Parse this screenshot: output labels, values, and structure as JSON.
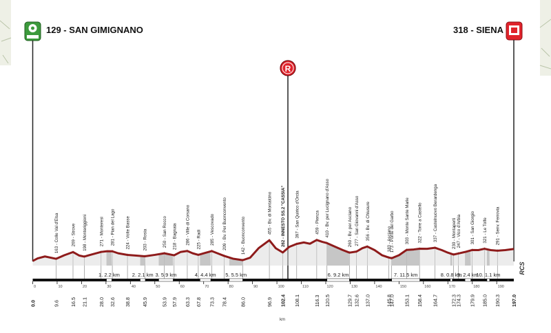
{
  "chart_data": {
    "type": "area",
    "start": {
      "label": "129 - SAN GIMIGNANO",
      "km": 0.0,
      "alt": 129
    },
    "finish": {
      "label": "318 - SIENA",
      "km": 197.0,
      "alt": 318
    },
    "feed_zone": {
      "letter": "R",
      "km": 102.4
    },
    "brand": "RCS",
    "axis_unit": "km",
    "xlim": [
      0,
      197.0
    ],
    "ylim_m": [
      100,
      500
    ],
    "km_ticks": [
      0,
      10,
      20,
      30,
      40,
      50,
      60,
      70,
      80,
      90,
      100,
      110,
      120,
      130,
      140,
      150,
      160,
      170,
      180,
      190
    ],
    "waypoints": [
      {
        "km": 9.6,
        "alt": 163,
        "label": "163 - Colle Val d'Elsa"
      },
      {
        "km": 16.5,
        "alt": 269,
        "label": "269 - Strove"
      },
      {
        "km": 21.1,
        "alt": 198,
        "label": "198 - Monteriggioni"
      },
      {
        "km": 28.0,
        "alt": 271,
        "label": "271 - Monteresi"
      },
      {
        "km": 32.6,
        "alt": 281,
        "label": "281 - Pian del Lago"
      },
      {
        "km": 38.8,
        "alt": 224,
        "label": "224 - Volte Basse"
      },
      {
        "km": 45.9,
        "alt": 203,
        "label": "203 - Rosia"
      },
      {
        "km": 53.9,
        "alt": 250,
        "label": "250 - San Rocco"
      },
      {
        "km": 57.9,
        "alt": 218,
        "label": "218 - Bagnaia"
      },
      {
        "km": 63.3,
        "alt": 286,
        "label": "286 - Ville di Corsano"
      },
      {
        "km": 67.8,
        "alt": 225,
        "label": "225 - Radi"
      },
      {
        "km": 73.3,
        "alt": 285,
        "label": "285 - Vescovado"
      },
      {
        "km": 78.4,
        "alt": 209,
        "label": "209 - Bv. Per Buonconvento"
      },
      {
        "km": 86.0,
        "alt": 142,
        "label": "142 - Buonconvento"
      },
      {
        "km": 96.9,
        "alt": 455,
        "label": "455 - Bv. di Montalcino"
      },
      {
        "km": 102.4,
        "alt": 262,
        "label": "262 - INNESTO SS.2 \"CASSIA\"",
        "bold": true
      },
      {
        "km": 108.1,
        "alt": 397,
        "label": "397 - San Quirico d'Orcia"
      },
      {
        "km": 116.3,
        "alt": 459,
        "label": "459 - Pienza"
      },
      {
        "km": 120.5,
        "alt": 410,
        "label": "410 - Bv. per Lucignano d'Asso"
      },
      {
        "km": 129.7,
        "alt": 260,
        "label": "260 - Bv. per Asciano"
      },
      {
        "km": 132.6,
        "alt": 277,
        "label": "277 - San Giovanni d'Asso"
      },
      {
        "km": 137.0,
        "alt": 356,
        "label": "356 - Bv. di Chiusure"
      },
      {
        "km": 145.8,
        "alt": 183,
        "label": "183 - Asciano"
      },
      {
        "km": 147.0,
        "alt": 173,
        "label": "173 - Ponte del Garbo"
      },
      {
        "km": 153.1,
        "alt": 303,
        "label": "303 - Monte Sante Marie"
      },
      {
        "km": 158.4,
        "alt": 322,
        "label": "322 - Torre a Castello"
      },
      {
        "km": 164.7,
        "alt": 337,
        "label": "337 - Castelnuovo Berardenga"
      },
      {
        "km": 172.3,
        "alt": 230,
        "label": "230 - Montaperti"
      },
      {
        "km": 174.3,
        "alt": 247,
        "label": "247 - Vico d'Arbia"
      },
      {
        "km": 179.9,
        "alt": 301,
        "label": "301 - San Giorgio"
      },
      {
        "km": 185.0,
        "alt": 321,
        "label": "321 - Le Tolfe"
      },
      {
        "km": 190.3,
        "alt": 291,
        "label": "291 - Senv. Ferrovia"
      }
    ],
    "distance_labels": [
      "0.0",
      "9.6",
      "16.5",
      "21.1",
      "28.0",
      "32.6",
      "38.8",
      "45.9",
      "53.9",
      "57.9",
      "63.3",
      "67.8",
      "73.3",
      "78.4",
      "86.0",
      "96.9",
      "102.4",
      "108.1",
      "116.3",
      "120.5",
      "129.7",
      "132.6",
      "137.0",
      "145.8",
      "147.0",
      "153.1",
      "158.4",
      "164.7",
      "172.3",
      "174.3",
      "179.9",
      "185.0",
      "190.3",
      "197.0"
    ],
    "sectors": [
      {
        "label": "1. 2.2 km",
        "from": 30.2,
        "to": 32.4
      },
      {
        "label": "2. 2.1 km",
        "from": 44.0,
        "to": 46.1
      },
      {
        "label": "3. 5.9 km",
        "from": 51.6,
        "to": 57.5
      },
      {
        "label": "4. 4.4 km",
        "from": 68.5,
        "to": 72.9
      },
      {
        "label": "5. 5.5 km",
        "from": 80.5,
        "to": 86.0
      },
      {
        "label": "6. 9.2 km",
        "from": 120.5,
        "to": 129.7
      },
      {
        "label": "7. 11.5 km",
        "from": 147.0,
        "to": 158.5
      },
      {
        "label": "8. 0.8 km",
        "from": 171.0,
        "to": 171.8
      },
      {
        "label": "9. 2.4 km",
        "from": 177.0,
        "to": 179.4
      },
      {
        "label": "10. 1.1 km",
        "from": 186.0,
        "to": 187.1
      }
    ],
    "profile": [
      [
        0,
        129
      ],
      [
        2,
        170
      ],
      [
        5,
        200
      ],
      [
        9.6,
        163
      ],
      [
        13,
        220
      ],
      [
        16.5,
        269
      ],
      [
        19,
        215
      ],
      [
        21.1,
        198
      ],
      [
        25,
        240
      ],
      [
        28,
        271
      ],
      [
        30.5,
        282
      ],
      [
        32.6,
        281
      ],
      [
        35,
        250
      ],
      [
        38.8,
        224
      ],
      [
        42,
        215
      ],
      [
        45.9,
        203
      ],
      [
        50,
        225
      ],
      [
        53.9,
        250
      ],
      [
        57.9,
        218
      ],
      [
        60.5,
        270
      ],
      [
        63.3,
        286
      ],
      [
        65.5,
        250
      ],
      [
        67.8,
        225
      ],
      [
        70.5,
        255
      ],
      [
        73.3,
        285
      ],
      [
        76,
        245
      ],
      [
        78.4,
        209
      ],
      [
        82,
        165
      ],
      [
        86,
        142
      ],
      [
        89,
        180
      ],
      [
        92.5,
        330
      ],
      [
        96.9,
        455
      ],
      [
        99.5,
        330
      ],
      [
        102.4,
        262
      ],
      [
        105,
        350
      ],
      [
        108.1,
        397
      ],
      [
        111,
        420
      ],
      [
        113.5,
        400
      ],
      [
        116.3,
        459
      ],
      [
        118.5,
        430
      ],
      [
        120.5,
        410
      ],
      [
        124,
        350
      ],
      [
        127,
        300
      ],
      [
        129.7,
        260
      ],
      [
        132.6,
        277
      ],
      [
        135,
        330
      ],
      [
        137,
        356
      ],
      [
        140,
        300
      ],
      [
        143,
        220
      ],
      [
        145.8,
        183
      ],
      [
        147,
        173
      ],
      [
        150,
        220
      ],
      [
        153.1,
        303
      ],
      [
        156,
        310
      ],
      [
        158.4,
        322
      ],
      [
        161.5,
        320
      ],
      [
        164.7,
        337
      ],
      [
        167.5,
        300
      ],
      [
        170,
        260
      ],
      [
        172.3,
        230
      ],
      [
        174.3,
        247
      ],
      [
        177,
        270
      ],
      [
        179.9,
        301
      ],
      [
        182.5,
        300
      ],
      [
        185,
        321
      ],
      [
        187.5,
        300
      ],
      [
        190.3,
        291
      ],
      [
        193.5,
        300
      ],
      [
        197,
        318
      ]
    ]
  }
}
